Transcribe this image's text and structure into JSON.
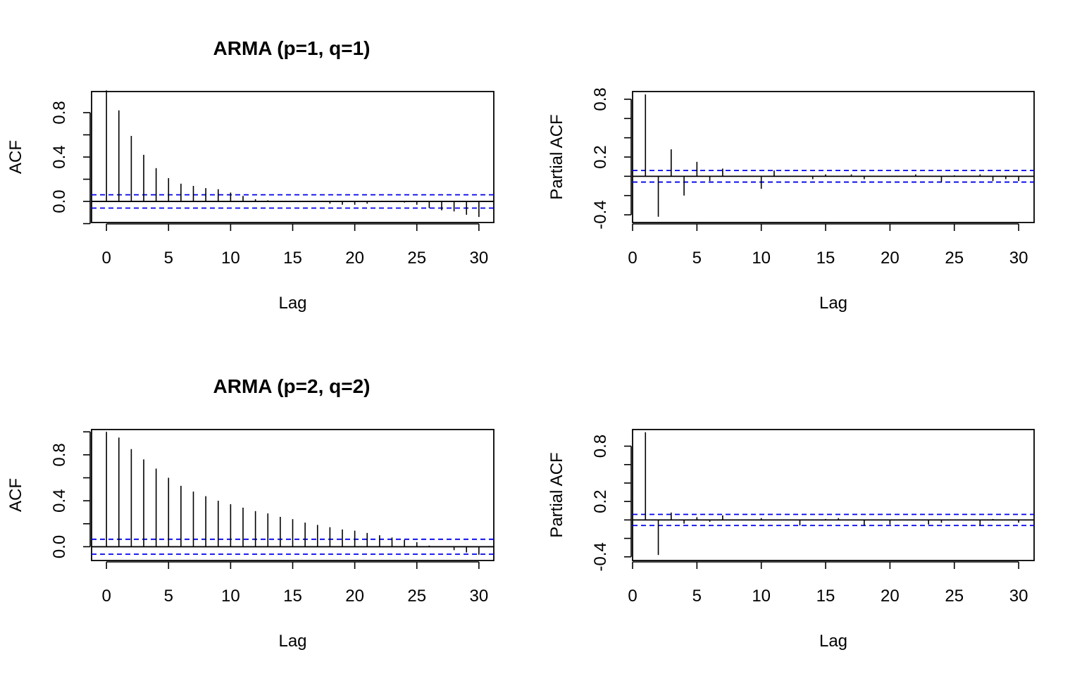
{
  "colors": {
    "spike": "#000000",
    "zero_line": "#000000",
    "confidence_band": "#0000EE",
    "frame": "#000000"
  },
  "chart_data": [
    {
      "type": "bar",
      "title": "ARMA (p=1, q=1)",
      "xlabel": "Lag",
      "ylabel": "ACF",
      "xlim": [
        -1.2,
        31.2
      ],
      "ylim": [
        -0.19,
        0.99
      ],
      "xticks": [
        0,
        5,
        10,
        15,
        20,
        25,
        30
      ],
      "yticks": [
        -0.2,
        0.0,
        0.2,
        0.4,
        0.6,
        0.8
      ],
      "ytick_labels": [
        "",
        "0.0",
        "",
        "0.4",
        "",
        "0.8"
      ],
      "confidence_bound": 0.06,
      "x": [
        0,
        1,
        2,
        3,
        4,
        5,
        6,
        7,
        8,
        9,
        10,
        11,
        12,
        13,
        14,
        15,
        16,
        17,
        18,
        19,
        20,
        21,
        22,
        23,
        24,
        25,
        26,
        27,
        28,
        29,
        30
      ],
      "values": [
        1.0,
        0.82,
        0.59,
        0.42,
        0.3,
        0.21,
        0.16,
        0.14,
        0.12,
        0.11,
        0.08,
        0.05,
        0.02,
        0.01,
        0.0,
        0.0,
        0.0,
        0.0,
        -0.02,
        -0.03,
        -0.03,
        -0.02,
        0.0,
        0.0,
        -0.01,
        -0.03,
        -0.06,
        -0.08,
        -0.09,
        -0.12,
        -0.14
      ]
    },
    {
      "type": "bar",
      "title": "",
      "xlabel": "Lag",
      "ylabel": "Partial ACF",
      "xlim": [
        0.0,
        31.2
      ],
      "ylim": [
        -0.48,
        0.88
      ],
      "xticks": [
        0,
        5,
        10,
        15,
        20,
        25,
        30
      ],
      "yticks": [
        -0.4,
        -0.2,
        0.0,
        0.2,
        0.4,
        0.6,
        0.8
      ],
      "ytick_labels": [
        "-0.4",
        "",
        "",
        "0.2",
        "",
        "",
        "0.8"
      ],
      "confidence_bound": 0.06,
      "x": [
        1,
        2,
        3,
        4,
        5,
        6,
        7,
        8,
        9,
        10,
        11,
        12,
        13,
        14,
        15,
        16,
        17,
        18,
        19,
        20,
        21,
        22,
        23,
        24,
        25,
        26,
        27,
        28,
        29,
        30
      ],
      "values": [
        0.85,
        -0.42,
        0.28,
        -0.2,
        0.15,
        -0.05,
        0.08,
        0.0,
        0.0,
        -0.13,
        0.06,
        0.0,
        0.0,
        -0.03,
        0.02,
        0.0,
        0.02,
        -0.03,
        0.0,
        0.0,
        0.0,
        0.02,
        0.0,
        -0.06,
        0.01,
        0.0,
        0.02,
        -0.05,
        -0.03,
        -0.05
      ]
    },
    {
      "type": "bar",
      "title": "ARMA (p=2, q=2)",
      "xlabel": "Lag",
      "ylabel": "ACF",
      "xlim": [
        -1.2,
        31.2
      ],
      "ylim": [
        -0.12,
        1.02
      ],
      "xticks": [
        0,
        5,
        10,
        15,
        20,
        25,
        30
      ],
      "yticks": [
        0.0,
        0.2,
        0.4,
        0.6,
        0.8,
        1.0
      ],
      "ytick_labels": [
        "0.0",
        "",
        "0.4",
        "",
        "0.8",
        ""
      ],
      "confidence_bound": 0.065,
      "x": [
        0,
        1,
        2,
        3,
        4,
        5,
        6,
        7,
        8,
        9,
        10,
        11,
        12,
        13,
        14,
        15,
        16,
        17,
        18,
        19,
        20,
        21,
        22,
        23,
        24,
        25,
        26,
        27,
        28,
        29,
        30
      ],
      "values": [
        1.0,
        0.95,
        0.85,
        0.76,
        0.68,
        0.6,
        0.53,
        0.48,
        0.44,
        0.4,
        0.37,
        0.34,
        0.31,
        0.29,
        0.26,
        0.24,
        0.21,
        0.19,
        0.17,
        0.15,
        0.14,
        0.12,
        0.1,
        0.08,
        0.06,
        0.04,
        0.01,
        0.0,
        -0.03,
        -0.05,
        -0.07
      ]
    },
    {
      "type": "bar",
      "title": "",
      "xlabel": "Lag",
      "ylabel": "Partial ACF",
      "xlim": [
        0.0,
        31.2
      ],
      "ylim": [
        -0.44,
        0.98
      ],
      "xticks": [
        0,
        5,
        10,
        15,
        20,
        25,
        30
      ],
      "yticks": [
        -0.4,
        -0.2,
        0.0,
        0.2,
        0.4,
        0.6,
        0.8
      ],
      "ytick_labels": [
        "-0.4",
        "",
        "",
        "0.2",
        "",
        "",
        "0.8"
      ],
      "confidence_bound": 0.06,
      "x": [
        1,
        2,
        3,
        4,
        5,
        6,
        7,
        8,
        9,
        10,
        11,
        12,
        13,
        14,
        15,
        16,
        17,
        18,
        19,
        20,
        21,
        22,
        23,
        24,
        25,
        26,
        27,
        28,
        29,
        30
      ],
      "values": [
        0.95,
        -0.38,
        0.08,
        -0.04,
        0.03,
        -0.02,
        0.05,
        0.0,
        0.0,
        0.02,
        0.0,
        0.0,
        -0.06,
        0.0,
        0.01,
        0.02,
        0.0,
        -0.06,
        0.0,
        -0.05,
        0.0,
        0.0,
        -0.05,
        -0.03,
        0.0,
        0.0,
        -0.06,
        0.01,
        0.0,
        -0.03
      ]
    }
  ]
}
